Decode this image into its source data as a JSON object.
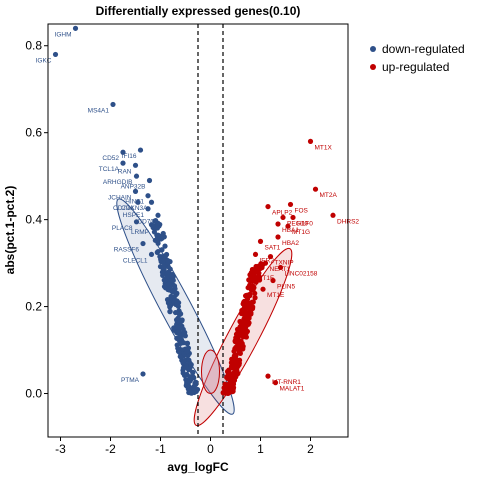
{
  "chart_data": {
    "type": "scatter",
    "title": "Differentially expressed genes(0.10)",
    "xlabel": "avg_logFC",
    "ylabel": "abs(pct.1-pct.2)",
    "xlim": [
      -3.25,
      2.75
    ],
    "ylim": [
      -0.1,
      0.85
    ],
    "x_ticks": [
      -3,
      -2,
      -1,
      0,
      1,
      2
    ],
    "y_ticks": [
      0.0,
      0.2,
      0.4,
      0.6,
      0.8
    ],
    "x_tick_labels": [
      "-3",
      "-2",
      "-1",
      "0",
      "1",
      "2"
    ],
    "y_tick_labels": [
      "0.0",
      "0.2",
      "0.4",
      "0.6",
      "0.8"
    ],
    "thresholds": [
      -0.25,
      0.25
    ],
    "grid": false,
    "legend": {
      "position": "top-right",
      "entries": [
        {
          "label": "down-regulated",
          "color": "#2E5089"
        },
        {
          "label": "up-regulated",
          "color": "#C00000"
        }
      ]
    },
    "series": [
      {
        "name": "down-regulated",
        "color": "#2E5089",
        "labeled_points": [
          {
            "label": "IGHM",
            "x": -2.7,
            "y": 0.84
          },
          {
            "label": "IGKC",
            "x": -3.1,
            "y": 0.78
          },
          {
            "label": "MS4A1",
            "x": -1.95,
            "y": 0.665
          },
          {
            "label": "IFI16",
            "x": -1.4,
            "y": 0.56
          },
          {
            "label": "CD52",
            "x": -1.75,
            "y": 0.555
          },
          {
            "label": "TCL1A",
            "x": -1.75,
            "y": 0.53
          },
          {
            "label": "RAN",
            "x": -1.5,
            "y": 0.525
          },
          {
            "label": "ARHGDIB",
            "x": -1.48,
            "y": 0.5
          },
          {
            "label": "ANP32B",
            "x": -1.22,
            "y": 0.49
          },
          {
            "label": "JCHAIN",
            "x": -1.5,
            "y": 0.465
          },
          {
            "label": "HINT1",
            "x": -1.25,
            "y": 0.455
          },
          {
            "label": "CD79A",
            "x": -1.45,
            "y": 0.44
          },
          {
            "label": "CDKN3A",
            "x": -1.18,
            "y": 0.44
          },
          {
            "label": "HSPE1",
            "x": -1.25,
            "y": 0.425
          },
          {
            "label": "CD70",
            "x": -1.05,
            "y": 0.41
          },
          {
            "label": "PLAC8",
            "x": -1.48,
            "y": 0.395
          },
          {
            "label": "LRMP",
            "x": -1.15,
            "y": 0.385
          },
          {
            "label": "RASSF6",
            "x": -1.35,
            "y": 0.345
          },
          {
            "label": "CLECL1",
            "x": -1.18,
            "y": 0.32
          },
          {
            "label": "PTMA",
            "x": -1.35,
            "y": 0.045
          }
        ],
        "cloud": {
          "x_range": [
            -1.2,
            -0.3
          ],
          "y_range": [
            0.0,
            0.4
          ],
          "n": 260
        }
      },
      {
        "name": "up-regulated",
        "color": "#C00000",
        "labeled_points": [
          {
            "label": "MT1X",
            "x": 2.0,
            "y": 0.58
          },
          {
            "label": "MT2A",
            "x": 2.1,
            "y": 0.47
          },
          {
            "label": "DHRS2",
            "x": 2.45,
            "y": 0.41
          },
          {
            "label": "FOS",
            "x": 1.6,
            "y": 0.435
          },
          {
            "label": "APLP2",
            "x": 1.15,
            "y": 0.43
          },
          {
            "label": "PEG10",
            "x": 1.45,
            "y": 0.405
          },
          {
            "label": "H1F0",
            "x": 1.65,
            "y": 0.405
          },
          {
            "label": "HBA1",
            "x": 1.35,
            "y": 0.39
          },
          {
            "label": "MT1G",
            "x": 1.55,
            "y": 0.385
          },
          {
            "label": "HBA2",
            "x": 1.35,
            "y": 0.36
          },
          {
            "label": "SAT1",
            "x": 1.0,
            "y": 0.35
          },
          {
            "label": "IER2",
            "x": 0.9,
            "y": 0.32
          },
          {
            "label": "TXNIP",
            "x": 1.2,
            "y": 0.315
          },
          {
            "label": "NEAT1",
            "x": 1.1,
            "y": 0.3
          },
          {
            "label": "LINC02158",
            "x": 1.4,
            "y": 0.29
          },
          {
            "label": "MT1F",
            "x": 0.85,
            "y": 0.28
          },
          {
            "label": "PLIN5",
            "x": 1.25,
            "y": 0.26
          },
          {
            "label": "MT1E",
            "x": 1.05,
            "y": 0.24
          },
          {
            "label": "MT-RNR1",
            "x": 1.15,
            "y": 0.04
          },
          {
            "label": "MALAT1",
            "x": 1.3,
            "y": 0.025
          }
        ],
        "cloud": {
          "x_range": [
            0.3,
            1.1
          ],
          "y_range": [
            0.0,
            0.3
          ],
          "n": 260
        }
      }
    ]
  }
}
